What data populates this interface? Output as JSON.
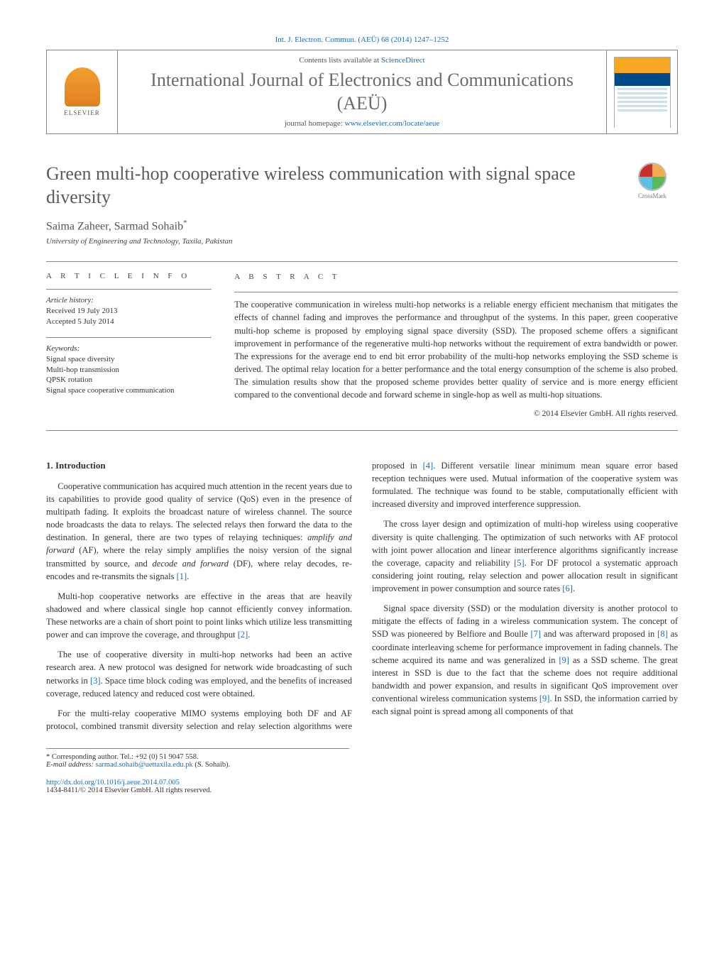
{
  "top_citation": "Int. J. Electron. Commun. (AEÜ) 68 (2014) 1247–1252",
  "header": {
    "contents_prefix": "Contents lists available at ",
    "contents_link": "ScienceDirect",
    "journal_name": "International Journal of Electronics and Communications (AEÜ)",
    "home_prefix": "journal homepage: ",
    "home_link": "www.elsevier.com/locate/aeue",
    "publisher_name": "ELSEVIER"
  },
  "article": {
    "title": "Green multi-hop cooperative wireless communication with signal space diversity",
    "authors": "Saima Zaheer, Sarmad Sohaib",
    "author_sup": "*",
    "affiliation": "University of Engineering and Technology, Taxila, Pakistan",
    "crossmark_label": "CrossMark"
  },
  "info": {
    "heading": "A R T I C L E   I N F O",
    "history_label": "Article history:",
    "received": "Received 19 July 2013",
    "accepted": "Accepted 5 July 2014",
    "keywords_label": "Keywords:",
    "keywords": [
      "Signal space diversity",
      "Multi-hop transmission",
      "QPSK rotation",
      "Signal space cooperative communication"
    ]
  },
  "abstract": {
    "heading": "A B S T R A C T",
    "text": "The cooperative communication in wireless multi-hop networks is a reliable energy efficient mechanism that mitigates the effects of channel fading and improves the performance and throughput of the systems. In this paper, green cooperative multi-hop scheme is proposed by employing signal space diversity (SSD). The proposed scheme offers a significant improvement in performance of the regenerative multi-hop networks without the requirement of extra bandwidth or power. The expressions for the average end to end bit error probability of the multi-hop networks employing the SSD scheme is derived. The optimal relay location for a better performance and the total energy consumption of the scheme is also probed. The simulation results show that the proposed scheme provides better quality of service and is more energy efficient compared to the conventional decode and forward scheme in single-hop as well as multi-hop situations.",
    "copyright": "© 2014 Elsevier GmbH. All rights reserved."
  },
  "body": {
    "sec1_head": "1. Introduction",
    "p1": "Cooperative communication has acquired much attention in the recent years due to its capabilities to provide good quality of service (QoS) even in the presence of multipath fading. It exploits the broadcast nature of wireless channel. The source node broadcasts the data to relays. The selected relays then forward the data to the destination. In general, there are two types of relaying techniques: ",
    "p1_em1": "amplify and forward",
    "p1_mid": " (AF), where the relay simply amplifies the noisy version of the signal transmitted by source, and ",
    "p1_em2": "decode and forward",
    "p1_end": " (DF), where relay decodes, re-encodes and re-transmits the signals ",
    "ref1": "[1]",
    "p2": "Multi-hop cooperative networks are effective in the areas that are heavily shadowed and where classical single hop cannot efficiently convey information. These networks are a chain of short point to point links which utilize less transmitting power and can improve the coverage, and throughput ",
    "ref2": "[2]",
    "p3a": "The use of cooperative diversity in multi-hop networks had been an active research area. A new protocol was designed for network wide broadcasting of such networks in ",
    "ref3": "[3]",
    "p3b": ". Space time block coding was employed, and the benefits of increased coverage, reduced latency and reduced cost were obtained.",
    "p4a": "For the multi-relay cooperative MIMO systems employing both DF and AF protocol, combined transmit diversity selection and relay selection algorithms were proposed in ",
    "ref4": "[4]",
    "p4b": ". Different versatile linear minimum mean square error based reception techniques were used. Mutual information of the cooperative system was formulated. The technique was found to be stable, computationally efficient with increased diversity and improved interference suppression.",
    "p5a": "The cross layer design and optimization of multi-hop wireless using cooperative diversity is quite challenging. The optimization of such networks with AF protocol with joint power allocation and linear interference algorithms significantly increase the coverage, capacity and reliability ",
    "ref5": "[5]",
    "p5b": ". For DF protocol a systematic approach considering joint routing, relay selection and power allocation result in significant improvement in power consumption and source rates ",
    "ref6": "[6]",
    "p6a": "Signal space diversity (SSD) or the modulation diversity is another protocol to mitigate the effects of fading in a wireless communication system. The concept of SSD was pioneered by Belfiore and Boulle ",
    "ref7": "[7]",
    "p6b": " and was afterward proposed in ",
    "ref8": "[8]",
    "p6c": " as coordinate interleaving scheme for performance improvement in fading channels. The scheme acquired its name and was generalized in ",
    "ref9": "[9]",
    "p6d": " as a SSD scheme. The great interest in SSD is due to the fact that the scheme does not require additional bandwidth and power expansion, and results in significant QoS improvement over conventional wireless communication systems ",
    "ref9b": "[9]",
    "p6e": ". In SSD, the information carried by each signal point is spread among all components of that"
  },
  "footnotes": {
    "corr": "* Corresponding author. Tel.: +92 (0) 51 9047 558.",
    "email_label": "E-mail address: ",
    "email": "sarmad.sohaib@uettaxila.edu.pk",
    "email_suffix": " (S. Sohaib)."
  },
  "bottom": {
    "doi": "http://dx.doi.org/10.1016/j.aeue.2014.07.005",
    "issn": "1434-8411/© 2014 Elsevier GmbH. All rights reserved."
  }
}
